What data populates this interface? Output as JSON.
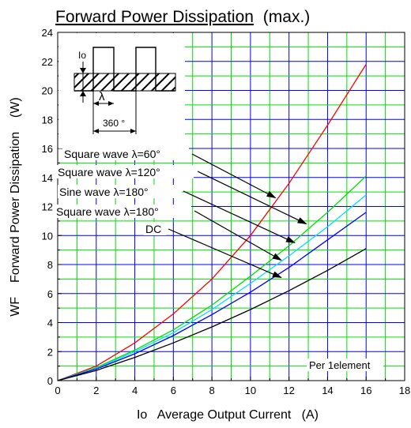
{
  "chart_data": {
    "type": "line",
    "title_underlined": "Forward Power Dissipation",
    "title_suffix": "(max.)",
    "xlabel": "Io   Average Output Current   (A)",
    "ylabel": "WF    Forward Power Dissipation    (W)",
    "xlim": [
      0,
      18
    ],
    "ylim": [
      0,
      24
    ],
    "x_ticks": [
      0,
      2,
      4,
      6,
      8,
      10,
      12,
      14,
      16,
      18
    ],
    "y_ticks": [
      0,
      2,
      4,
      6,
      8,
      10,
      12,
      14,
      16,
      18,
      20,
      22,
      24
    ],
    "x_tick_labels": [
      "0",
      "2",
      "4",
      "6",
      "8",
      "10",
      "12",
      "14",
      "16",
      "18"
    ],
    "y_tick_labels": [
      "0",
      "2",
      "4",
      "6",
      "8",
      "10",
      "12",
      "14",
      "16",
      "18",
      "20",
      "22",
      "24"
    ],
    "grid": true,
    "grid_colors": {
      "green": "#00e000",
      "blue": "#0000ff"
    },
    "series": [
      {
        "name": "Square wave λ=60°",
        "color": "#ff0000",
        "x": [
          0,
          2,
          4,
          6,
          8,
          10,
          12,
          14,
          16
        ],
        "y": [
          0,
          1.0,
          2.6,
          4.6,
          7.0,
          10.0,
          13.6,
          17.6,
          21.8
        ]
      },
      {
        "name": "Square wave λ=120°",
        "color": "#00e000",
        "x": [
          0,
          2,
          4,
          6,
          8,
          10,
          12,
          14,
          16
        ],
        "y": [
          0,
          0.9,
          2.1,
          3.5,
          5.2,
          7.2,
          9.3,
          11.6,
          14.1
        ]
      },
      {
        "name": "Sine wave λ=180°",
        "color": "#00e0ff",
        "x": [
          0,
          2,
          4,
          6,
          8,
          10,
          12,
          14,
          16
        ],
        "y": [
          0,
          0.85,
          2.0,
          3.3,
          4.9,
          6.7,
          8.6,
          10.6,
          12.8
        ]
      },
      {
        "name": "Square wave λ=180°",
        "color": "#0000ff",
        "x": [
          0,
          2,
          4,
          6,
          8,
          10,
          12,
          14,
          16
        ],
        "y": [
          0,
          0.8,
          1.85,
          3.1,
          4.55,
          6.1,
          7.8,
          9.7,
          11.6
        ]
      },
      {
        "name": "DC",
        "color": "#000000",
        "x": [
          0,
          2,
          4,
          6,
          8,
          10,
          12,
          14,
          16
        ],
        "y": [
          0,
          0.7,
          1.6,
          2.6,
          3.7,
          4.9,
          6.2,
          7.6,
          9.1
        ]
      }
    ],
    "legend_labels": [
      {
        "label": "Square wave λ=60°",
        "arrow_to": [
          11.3,
          12.6
        ]
      },
      {
        "label": "Square wave λ=120°",
        "arrow_to": [
          12.9,
          10.8
        ]
      },
      {
        "label": "Sine wave λ=180°",
        "arrow_to": [
          12.3,
          9.5
        ]
      },
      {
        "label": "Square wave λ=180°",
        "arrow_to": [
          11.6,
          8.3
        ]
      },
      {
        "label": "DC",
        "arrow_to": [
          11.6,
          7.1
        ]
      }
    ],
    "annotation": "Per 1element",
    "inset": {
      "io_label": "Io",
      "lambda_label": "λ",
      "period_label": "360 °"
    }
  }
}
